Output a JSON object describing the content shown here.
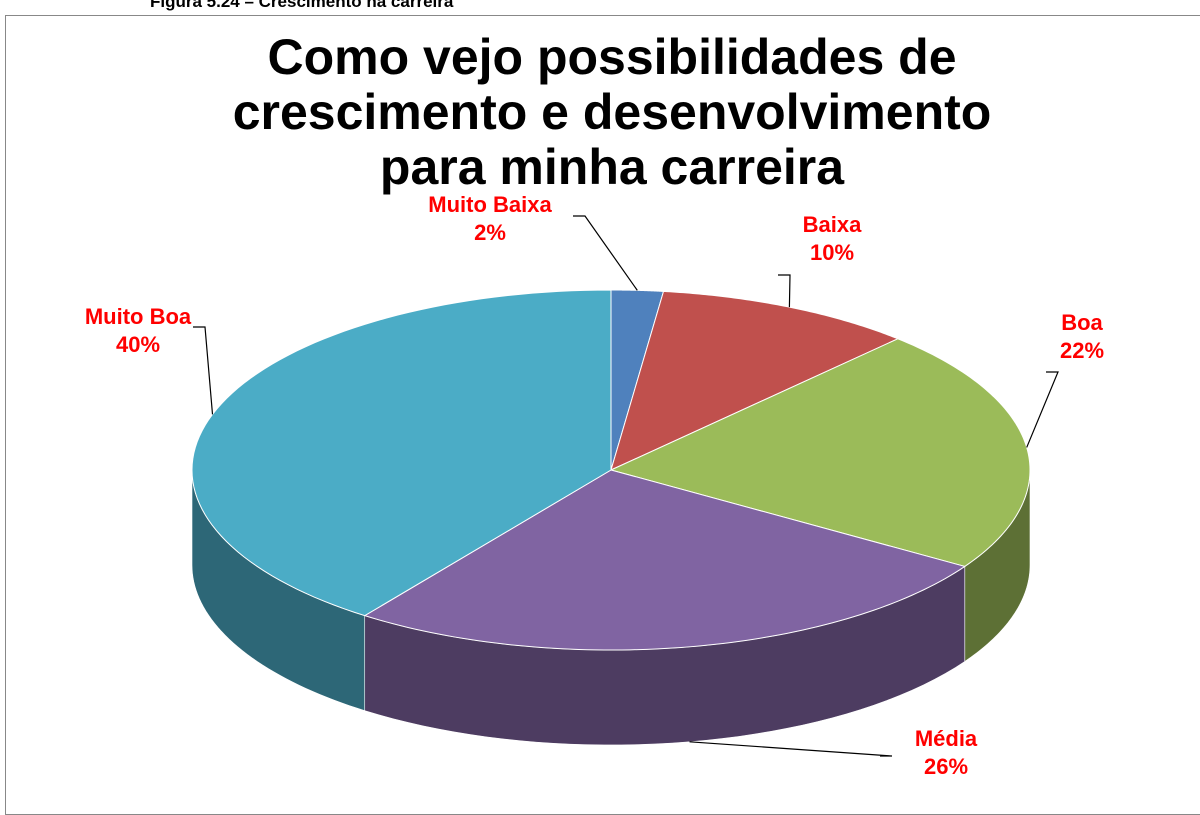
{
  "caption": "Figura 5.24 – Crescimento na carreira",
  "chart_data": {
    "type": "pie3d",
    "title": "Como vejo possibilidades de crescimento e desenvolvimento para minha carreira",
    "categories": [
      "Muito Baixa",
      "Baixa",
      "Boa",
      "Média",
      "Muito Boa"
    ],
    "values": [
      2,
      10,
      22,
      26,
      40
    ],
    "value_labels": [
      "2%",
      "10%",
      "22%",
      "26%",
      "40%"
    ],
    "colors": [
      "#4f81bd",
      "#c0504d",
      "#9bbb59",
      "#8064a2",
      "#4bacc6"
    ]
  }
}
